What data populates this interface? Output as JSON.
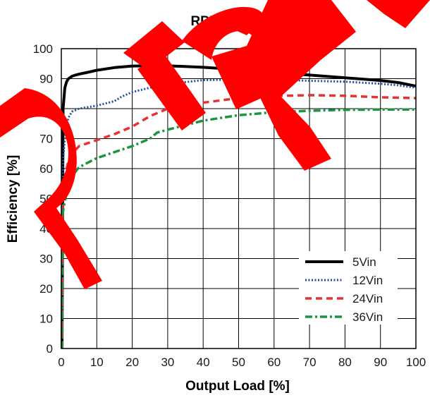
{
  "watermark": {
    "text": "Preliminary",
    "color": "#ff0000"
  },
  "chart_data": {
    "type": "line",
    "title": "RPMB3.3-3.0",
    "xlabel": "Output Load [%]",
    "ylabel": "Efficiency [%]",
    "xlim": [
      0,
      100
    ],
    "ylim": [
      0,
      100
    ],
    "x_ticks": [
      "0",
      "10",
      "20",
      "30",
      "40",
      "50",
      "60",
      "70",
      "80",
      "90",
      "100"
    ],
    "y_ticks": [
      "0",
      "10",
      "20",
      "30",
      "40",
      "50",
      "60",
      "70",
      "80",
      "90",
      "100"
    ],
    "grid": true,
    "legend_position": "bottom-right",
    "series": [
      {
        "name": "5Vin",
        "color": "#000000",
        "style": "solid",
        "x": [
          0.5,
          1,
          1.5,
          2,
          3,
          4,
          5,
          7,
          10,
          15,
          20,
          25,
          30,
          40,
          50,
          60,
          70,
          80,
          90,
          95,
          100
        ],
        "y": [
          80,
          87,
          89,
          90,
          90.8,
          91.2,
          91.5,
          92,
          92.8,
          93.7,
          94.2,
          94.3,
          94.3,
          93.8,
          93,
          92.1,
          91.2,
          90.3,
          89.4,
          88.7,
          87.5
        ]
      },
      {
        "name": "12Vin",
        "color": "#1f4e9c",
        "style": "dotted",
        "x": [
          0.3,
          0.5,
          1,
          1.5,
          2,
          3,
          5,
          10,
          15,
          17,
          20,
          25,
          30,
          40,
          50,
          60,
          70,
          80,
          90,
          95,
          100
        ],
        "y": [
          48,
          63,
          70,
          74,
          77,
          79,
          80,
          81,
          82.5,
          84,
          85.5,
          87,
          88.2,
          89.5,
          89.7,
          89.6,
          89.3,
          89,
          88.3,
          87.8,
          87
        ]
      },
      {
        "name": "24Vin",
        "color": "#e63232",
        "style": "dashed",
        "x": [
          0.3,
          0.5,
          1,
          1.5,
          2,
          3,
          5,
          10,
          15,
          20,
          25,
          30,
          40,
          50,
          60,
          70,
          80,
          90,
          100
        ],
        "y": [
          43,
          52,
          57,
          60,
          62.5,
          65,
          67.5,
          69.5,
          71.5,
          74,
          77.5,
          80,
          82,
          83.5,
          84.2,
          84.5,
          84.3,
          83.8,
          83.5
        ]
      },
      {
        "name": "36Vin",
        "color": "#1a9641",
        "style": "dashdot",
        "x": [
          0.3,
          0.5,
          1,
          1.5,
          2,
          3,
          5,
          10,
          15,
          20,
          25,
          27,
          30,
          40,
          50,
          60,
          70,
          80,
          90,
          100
        ],
        "y": [
          42,
          46,
          49,
          52,
          54.5,
          57.5,
          60.5,
          63.5,
          65.5,
          67.5,
          70,
          72,
          73,
          76,
          77.8,
          78.8,
          79.3,
          79.6,
          79.7,
          79.7
        ]
      }
    ]
  }
}
